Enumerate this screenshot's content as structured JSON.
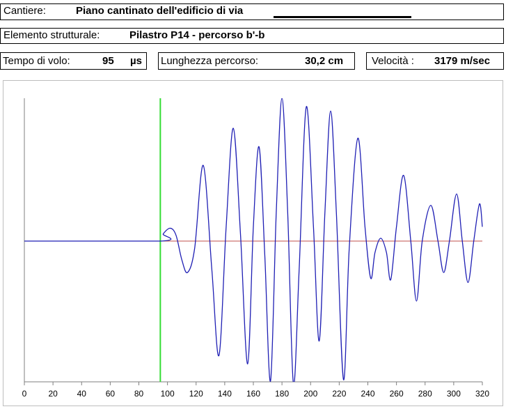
{
  "header": {
    "cantiere_label": "Cantiere:",
    "cantiere_value": "Piano cantinato dell'edificio di via",
    "elemento_label": "Elemento strutturale:",
    "elemento_value": "Pilastro P14  - percorso b'-b",
    "tempo_label": "Tempo di volo:",
    "tempo_value": "95",
    "tempo_unit": "µs",
    "lunghezza_label": "Lunghezza percorso:",
    "lunghezza_value": "30,2 cm",
    "velocita_label": "Velocità :",
    "velocita_value": "3179 m/sec"
  },
  "chart_data": {
    "type": "line",
    "title": "",
    "xlabel": "",
    "ylabel": "",
    "xlim": [
      0,
      320
    ],
    "x_ticks": [
      0,
      20,
      40,
      60,
      80,
      100,
      120,
      140,
      160,
      180,
      200,
      220,
      240,
      260,
      280,
      300,
      320
    ],
    "tick_labels": [
      "0",
      "20",
      "40",
      "60",
      "80",
      "100",
      "120",
      "140",
      "160",
      "180",
      "200",
      "220",
      "240",
      "260",
      "280",
      "300",
      "320"
    ],
    "ylim": [
      -1,
      1
    ],
    "grid": false,
    "legend": "none",
    "marker_line": {
      "x": 95,
      "color": "#33dd33"
    },
    "baseline": {
      "x": [
        95,
        320
      ],
      "y": 0,
      "color": "#c0504d"
    },
    "series": [
      {
        "color": "#1f1fb4",
        "points": [
          [
            0,
            0
          ],
          [
            95,
            0
          ],
          [
            97,
            0.05
          ],
          [
            102,
            0.09
          ],
          [
            106,
            0.04
          ],
          [
            110,
            -0.13
          ],
          [
            114,
            -0.22
          ],
          [
            119,
            -0.05
          ],
          [
            125,
            0.53
          ],
          [
            131,
            -0.2
          ],
          [
            136,
            -0.8
          ],
          [
            141,
            0.1
          ],
          [
            146,
            0.79
          ],
          [
            151,
            0.05
          ],
          [
            156,
            -0.86
          ],
          [
            160,
            0.1
          ],
          [
            164,
            0.66
          ],
          [
            168,
            -0.1
          ],
          [
            172,
            -0.98
          ],
          [
            176,
            0.2
          ],
          [
            180,
            1.0
          ],
          [
            184,
            0.2
          ],
          [
            188,
            -1.0
          ],
          [
            192,
            -0.2
          ],
          [
            197,
            0.94
          ],
          [
            202,
            0.1
          ],
          [
            206,
            -0.7
          ],
          [
            210,
            0.2
          ],
          [
            214,
            0.91
          ],
          [
            218,
            0.2
          ],
          [
            223,
            -0.97
          ],
          [
            227,
            -0.05
          ],
          [
            233,
            0.72
          ],
          [
            238,
            0.1
          ],
          [
            242,
            -0.26
          ],
          [
            245,
            -0.08
          ],
          [
            249,
            0.02
          ],
          [
            253,
            -0.08
          ],
          [
            256,
            -0.27
          ],
          [
            260,
            0.1
          ],
          [
            265,
            0.46
          ],
          [
            270,
            0.0
          ],
          [
            274,
            -0.42
          ],
          [
            278,
            0.0
          ],
          [
            284,
            0.25
          ],
          [
            289,
            0.0
          ],
          [
            293,
            -0.22
          ],
          [
            297,
            0.0
          ],
          [
            302,
            0.33
          ],
          [
            306,
            0.0
          ],
          [
            310,
            -0.29
          ],
          [
            314,
            0.0
          ],
          [
            318,
            0.26
          ],
          [
            320,
            0.1
          ]
        ]
      }
    ]
  }
}
